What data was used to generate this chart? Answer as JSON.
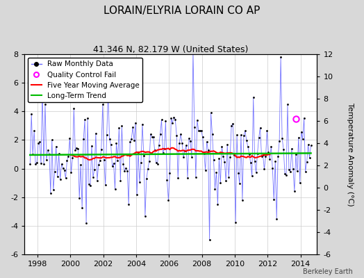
{
  "title": "LORAIN/ELYRIA LORAIN CO AP",
  "subtitle": "41.346 N, 82.179 W (United States)",
  "ylabel": "Temperature Anomaly (°C)",
  "xlabel_years": [
    1998,
    2000,
    2002,
    2004,
    2006,
    2008,
    2010,
    2012,
    2014
  ],
  "xlim": [
    1997.2,
    2015.0
  ],
  "ylim_left": [
    -6,
    8
  ],
  "ylim_right": [
    -6,
    12
  ],
  "yticks_left": [
    -6,
    -4,
    -2,
    0,
    2,
    4,
    6,
    8
  ],
  "yticks_right": [
    -6,
    -4,
    -2,
    0,
    2,
    4,
    6,
    8,
    10,
    12
  ],
  "watermark": "Berkeley Earth",
  "bg_color": "#d8d8d8",
  "plot_bg_color": "#ffffff",
  "raw_color": "#6666ff",
  "ma_color": "#ff0000",
  "trend_color": "#00bb00",
  "qc_fail_color": "#ff00ff",
  "qc_x": 2013.7,
  "qc_y": 3.5,
  "seed": 99
}
